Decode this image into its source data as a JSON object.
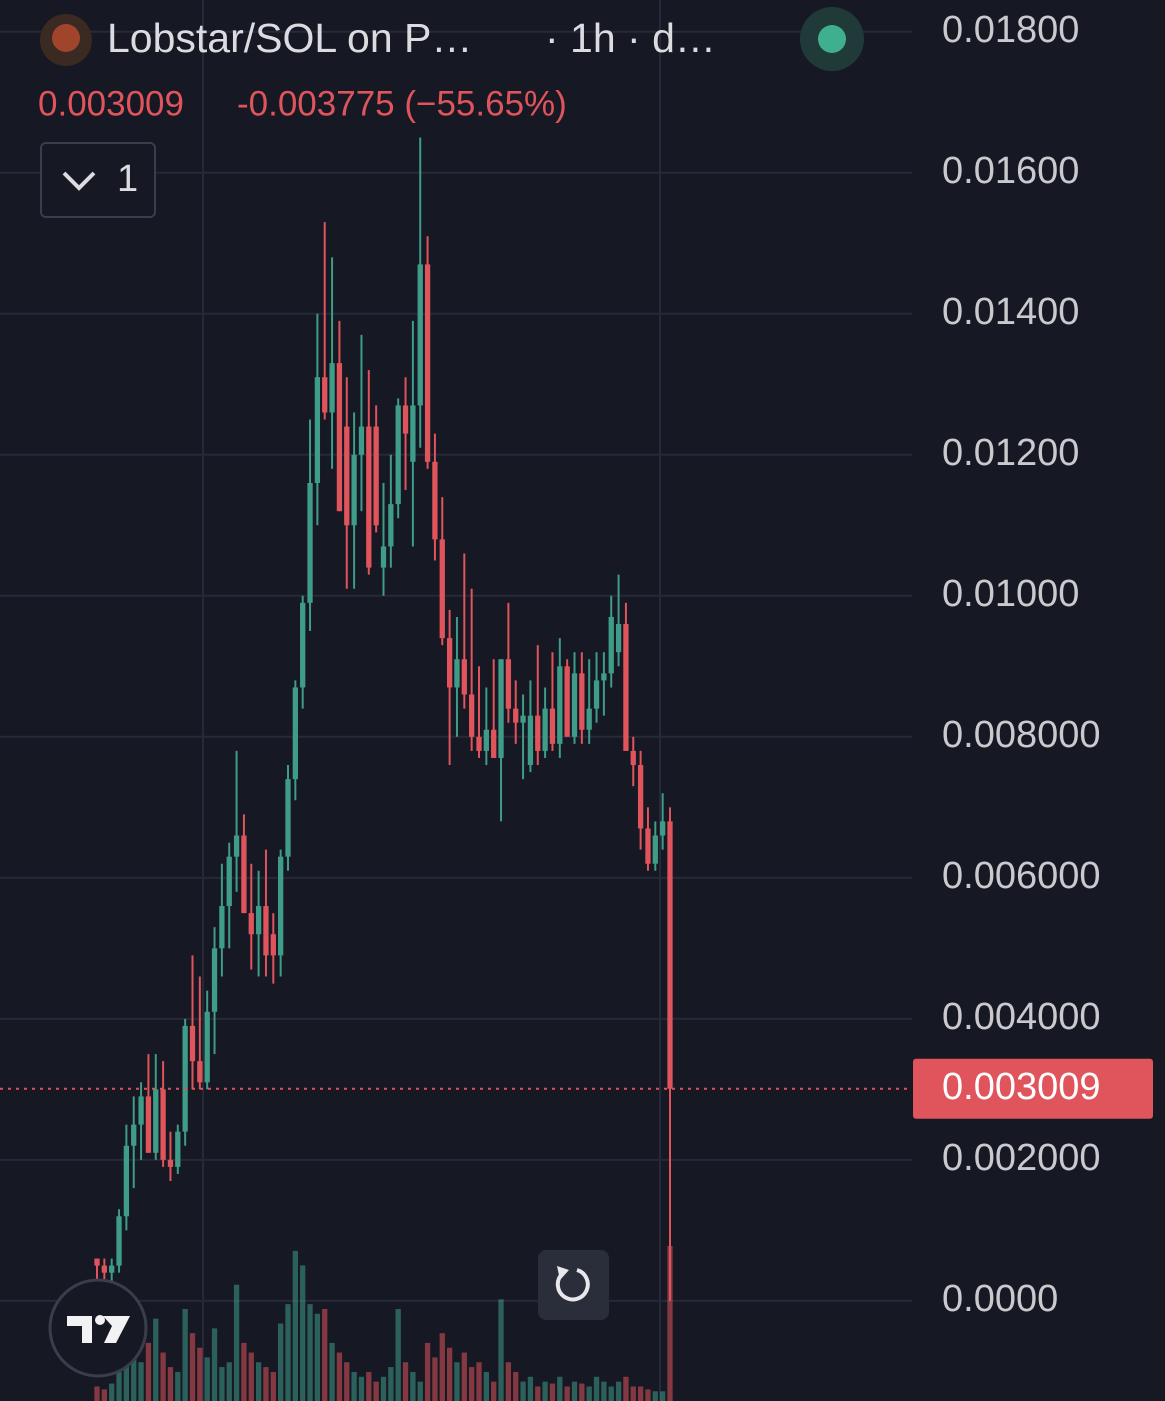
{
  "chart_data": {
    "type": "candlestick",
    "title": "Lobstar/SOL on P…",
    "subtitle": "· 1h · d…",
    "change": "-0.003775 (−55.65%)",
    "indicator_count": "1",
    "up_color": "#3f9c88",
    "down_color": "#e0545c",
    "grid": true,
    "ylim": [
      -0.00142,
      0.01845
    ],
    "yticks": [
      {
        "value": 0,
        "label": "0.0000"
      },
      {
        "value": 0.002,
        "label": "0.002000"
      },
      {
        "value": 0.004,
        "label": "0.004000"
      },
      {
        "value": 0.006,
        "label": "0.006000"
      },
      {
        "value": 0.008,
        "label": "0.008000"
      },
      {
        "value": 0.01,
        "label": "0.01000"
      },
      {
        "value": 0.012,
        "label": "0.01200"
      },
      {
        "value": 0.014,
        "label": "0.01400"
      },
      {
        "value": 0.016,
        "label": "0.01600"
      },
      {
        "value": 0.018,
        "label": "0.01800"
      }
    ],
    "open": [
      0.0006,
      0.0005,
      0.0004,
      0.0005,
      0.0012,
      0.0022,
      0.0025,
      0.0029,
      0.0021,
      0.003,
      0.002,
      0.0019,
      0.0024,
      0.0039,
      0.0034,
      0.0031,
      0.0041,
      0.005,
      0.0056,
      0.0063,
      0.0066,
      0.0055,
      0.0052,
      0.0056,
      0.0052,
      0.0049,
      0.0063,
      0.0074,
      0.0087,
      0.0099,
      0.0116,
      0.0131,
      0.0126,
      0.0133,
      0.0124,
      0.011,
      0.012,
      0.0124,
      0.0124,
      0.0104,
      0.0107,
      0.0113,
      0.0127,
      0.0119,
      0.0127,
      0.0147,
      0.0119,
      0.0108,
      0.0094,
      0.0087,
      0.0091,
      0.0086,
      0.008,
      0.0078,
      0.0081,
      0.0077,
      0.0091,
      0.0084,
      0.0082,
      0.0076,
      0.0083,
      0.0078,
      0.0084,
      0.0079,
      0.009,
      0.008,
      0.0089,
      0.0081,
      0.0084,
      0.0088,
      0.0089,
      0.0092,
      0.0096,
      0.0078,
      0.0076,
      0.0067,
      0.0062,
      0.0066,
      0.0068
    ],
    "high": [
      0.0006,
      0.0006,
      0.0006,
      0.0013,
      0.0025,
      0.0029,
      0.0031,
      0.0035,
      0.0035,
      0.0034,
      0.0024,
      0.0025,
      0.004,
      0.0049,
      0.0046,
      0.0044,
      0.0053,
      0.0062,
      0.0065,
      0.0078,
      0.0069,
      0.0062,
      0.0061,
      0.0064,
      0.0055,
      0.0064,
      0.0076,
      0.0088,
      0.01,
      0.0125,
      0.014,
      0.0153,
      0.0148,
      0.0139,
      0.0131,
      0.0126,
      0.0137,
      0.0132,
      0.0127,
      0.0116,
      0.012,
      0.0128,
      0.0131,
      0.0139,
      0.0165,
      0.0151,
      0.0123,
      0.0114,
      0.0098,
      0.0097,
      0.0106,
      0.0101,
      0.009,
      0.0087,
      0.0091,
      0.0091,
      0.0099,
      0.0088,
      0.0086,
      0.0088,
      0.0093,
      0.0087,
      0.0092,
      0.0094,
      0.0091,
      0.0092,
      0.0092,
      0.0091,
      0.0092,
      0.0092,
      0.01,
      0.0103,
      0.0099,
      0.008,
      0.0078,
      0.007,
      0.0068,
      0.0072,
      0.007
    ],
    "low": [
      0.0002,
      0.0003,
      0.0002,
      0.0004,
      0.001,
      0.0016,
      0.002,
      0.0021,
      0.002,
      0.0019,
      0.0017,
      0.0018,
      0.0022,
      0.003,
      0.003,
      0.003,
      0.0035,
      0.0046,
      0.005,
      0.0058,
      0.0055,
      0.0047,
      0.0046,
      0.0046,
      0.0045,
      0.0046,
      0.0061,
      0.0071,
      0.0084,
      0.0095,
      0.011,
      0.0125,
      0.0118,
      0.0112,
      0.0101,
      0.0101,
      0.0112,
      0.0103,
      0.0109,
      0.01,
      0.0104,
      0.0111,
      0.0115,
      0.0107,
      0.0121,
      0.0118,
      0.0105,
      0.0093,
      0.0076,
      0.008,
      0.0084,
      0.0078,
      0.0077,
      0.0076,
      0.0077,
      0.0068,
      0.0082,
      0.0079,
      0.0074,
      0.0075,
      0.0076,
      0.0077,
      0.0078,
      0.0077,
      0.008,
      0.0079,
      0.0079,
      0.0079,
      0.0082,
      0.0083,
      0.0087,
      0.009,
      0.0078,
      0.0073,
      0.0064,
      0.0061,
      0.0061,
      0.0064,
      0
    ],
    "close": [
      0.0005,
      0.0004,
      0.0005,
      0.0012,
      0.0022,
      0.0025,
      0.0029,
      0.0021,
      0.003,
      0.002,
      0.0019,
      0.0024,
      0.0039,
      0.0034,
      0.0031,
      0.0041,
      0.005,
      0.0056,
      0.0063,
      0.0066,
      0.0055,
      0.0052,
      0.0056,
      0.0049,
      0.0049,
      0.0063,
      0.0074,
      0.0087,
      0.0099,
      0.0116,
      0.0131,
      0.0126,
      0.0133,
      0.0112,
      0.011,
      0.012,
      0.0124,
      0.0104,
      0.011,
      0.0107,
      0.0113,
      0.0127,
      0.0123,
      0.0127,
      0.0147,
      0.0119,
      0.0108,
      0.0094,
      0.0087,
      0.0091,
      0.0086,
      0.008,
      0.0078,
      0.0081,
      0.0077,
      0.0091,
      0.0084,
      0.0082,
      0.0083,
      0.0083,
      0.0078,
      0.0084,
      0.0079,
      0.009,
      0.008,
      0.0089,
      0.0081,
      0.0084,
      0.0088,
      0.0089,
      0.0097,
      0.0096,
      0.0078,
      0.0076,
      0.0067,
      0.0062,
      0.0066,
      0.0068,
      0.003009
    ],
    "volume": [
      15,
      12,
      18,
      30,
      55,
      45,
      40,
      60,
      85,
      50,
      35,
      30,
      95,
      70,
      55,
      45,
      75,
      35,
      40,
      120,
      60,
      50,
      40,
      35,
      30,
      80,
      100,
      155,
      140,
      100,
      90,
      95,
      60,
      50,
      40,
      30,
      25,
      30,
      20,
      25,
      35,
      95,
      40,
      30,
      20,
      60,
      45,
      70,
      55,
      40,
      50,
      35,
      40,
      30,
      20,
      105,
      40,
      30,
      20,
      25,
      15,
      20,
      18,
      25,
      15,
      20,
      18,
      15,
      25,
      20,
      15,
      20,
      25,
      15,
      15,
      12,
      10,
      10,
      160
    ]
  }
}
